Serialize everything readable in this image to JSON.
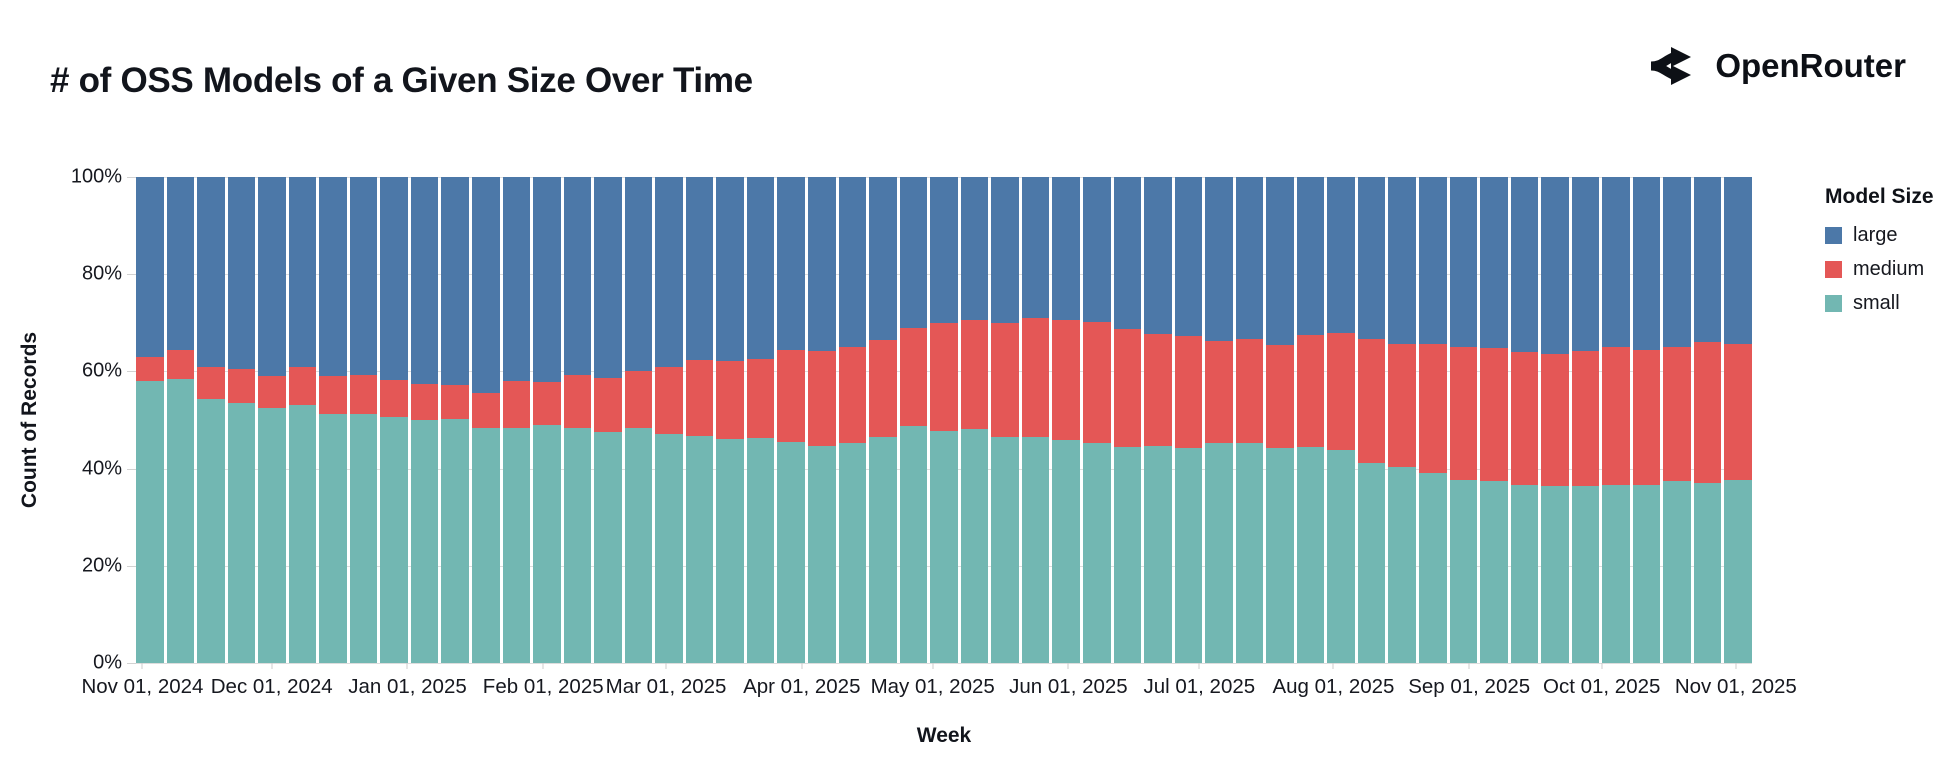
{
  "header": {
    "title": "# of OSS Models of a Given Size Over Time",
    "brand": "OpenRouter"
  },
  "colors": {
    "large": "#4c78a8",
    "medium": "#e45756",
    "small": "#72b7b2",
    "text": "#16181f",
    "gridline": "#dddddd"
  },
  "chart_data": {
    "type": "bar",
    "variant": "stacked-normalized-weekly",
    "title": "# of OSS Models of a Given Size Over Time",
    "xlabel": "Week",
    "ylabel": "Count of Records",
    "ylim": [
      0,
      100
    ],
    "grid": true,
    "y_ticks": [
      {
        "label": "0%",
        "value": 0
      },
      {
        "label": "20%",
        "value": 20
      },
      {
        "label": "40%",
        "value": 40
      },
      {
        "label": "60%",
        "value": 60
      },
      {
        "label": "80%",
        "value": 80
      },
      {
        "label": "100%",
        "value": 100
      }
    ],
    "x_ticks": [
      {
        "label": "Nov 01, 2024",
        "frac": 0.4
      },
      {
        "label": "Dec 01, 2024",
        "frac": 8.4
      },
      {
        "label": "Jan 01, 2025",
        "frac": 16.8
      },
      {
        "label": "Feb 01, 2025",
        "frac": 25.2
      },
      {
        "label": "Mar 01, 2025",
        "frac": 32.8
      },
      {
        "label": "Apr 01, 2025",
        "frac": 41.2
      },
      {
        "label": "May 01, 2025",
        "frac": 49.3
      },
      {
        "label": "Jun 01, 2025",
        "frac": 57.7
      },
      {
        "label": "Jul 01, 2025",
        "frac": 65.8
      },
      {
        "label": "Aug 01, 2025",
        "frac": 74.1
      },
      {
        "label": "Sep 01, 2025",
        "frac": 82.5
      },
      {
        "label": "Oct 01, 2025",
        "frac": 90.7
      },
      {
        "label": "Nov 01, 2025",
        "frac": 99.0
      }
    ],
    "legend": {
      "title": "Model Size",
      "position": "right",
      "entries": [
        {
          "label": "large",
          "color": "#4c78a8"
        },
        {
          "label": "medium",
          "color": "#e45756"
        },
        {
          "label": "small",
          "color": "#72b7b2"
        }
      ]
    },
    "weeks": [
      {
        "week": "2024-10-28",
        "small": 58.0,
        "medium": 5.0,
        "large": 37.0
      },
      {
        "week": "2024-11-04",
        "small": 58.5,
        "medium": 6.0,
        "large": 35.5
      },
      {
        "week": "2024-11-11",
        "small": 54.3,
        "medium": 6.7,
        "large": 39.0
      },
      {
        "week": "2024-11-18",
        "small": 53.5,
        "medium": 7.0,
        "large": 39.5
      },
      {
        "week": "2024-11-25",
        "small": 52.4,
        "medium": 6.6,
        "large": 41.0
      },
      {
        "week": "2024-12-02",
        "small": 53.0,
        "medium": 8.0,
        "large": 39.0
      },
      {
        "week": "2024-12-09",
        "small": 51.3,
        "medium": 7.7,
        "large": 41.0
      },
      {
        "week": "2024-12-16",
        "small": 51.3,
        "medium": 8.0,
        "large": 40.7
      },
      {
        "week": "2024-12-23",
        "small": 50.7,
        "medium": 7.5,
        "large": 41.8
      },
      {
        "week": "2024-12-30",
        "small": 50.0,
        "medium": 7.4,
        "large": 42.6
      },
      {
        "week": "2025-01-06",
        "small": 50.2,
        "medium": 7.1,
        "large": 42.7
      },
      {
        "week": "2025-01-13",
        "small": 48.4,
        "medium": 7.2,
        "large": 44.4
      },
      {
        "week": "2025-01-20",
        "small": 48.4,
        "medium": 9.7,
        "large": 41.9
      },
      {
        "week": "2025-01-27",
        "small": 48.9,
        "medium": 8.9,
        "large": 42.2
      },
      {
        "week": "2025-02-03",
        "small": 48.3,
        "medium": 10.9,
        "large": 40.8
      },
      {
        "week": "2025-02-10",
        "small": 47.5,
        "medium": 11.2,
        "large": 41.3
      },
      {
        "week": "2025-02-17",
        "small": 48.3,
        "medium": 11.7,
        "large": 40.0
      },
      {
        "week": "2025-02-24",
        "small": 47.1,
        "medium": 13.8,
        "large": 39.1
      },
      {
        "week": "2025-03-03",
        "small": 46.7,
        "medium": 15.6,
        "large": 37.7
      },
      {
        "week": "2025-03-10",
        "small": 46.1,
        "medium": 16.0,
        "large": 37.9
      },
      {
        "week": "2025-03-17",
        "small": 46.2,
        "medium": 16.4,
        "large": 37.4
      },
      {
        "week": "2025-03-24",
        "small": 45.5,
        "medium": 18.9,
        "large": 35.6
      },
      {
        "week": "2025-03-31",
        "small": 44.7,
        "medium": 19.6,
        "large": 35.7
      },
      {
        "week": "2025-04-07",
        "small": 45.2,
        "medium": 19.9,
        "large": 34.9
      },
      {
        "week": "2025-04-14",
        "small": 46.4,
        "medium": 20.0,
        "large": 33.6
      },
      {
        "week": "2025-04-21",
        "small": 48.7,
        "medium": 20.2,
        "large": 31.1
      },
      {
        "week": "2025-04-28",
        "small": 47.8,
        "medium": 22.2,
        "large": 30.0
      },
      {
        "week": "2025-05-05",
        "small": 48.2,
        "medium": 22.4,
        "large": 29.4
      },
      {
        "week": "2025-05-12",
        "small": 46.6,
        "medium": 23.4,
        "large": 30.0
      },
      {
        "week": "2025-05-19",
        "small": 46.4,
        "medium": 24.5,
        "large": 29.1
      },
      {
        "week": "2025-05-26",
        "small": 45.9,
        "medium": 24.7,
        "large": 29.4
      },
      {
        "week": "2025-06-02",
        "small": 45.2,
        "medium": 25.0,
        "large": 29.8
      },
      {
        "week": "2025-06-09",
        "small": 44.4,
        "medium": 24.3,
        "large": 31.3
      },
      {
        "week": "2025-06-16",
        "small": 44.7,
        "medium": 22.9,
        "large": 32.4
      },
      {
        "week": "2025-06-23",
        "small": 44.2,
        "medium": 23.1,
        "large": 32.7
      },
      {
        "week": "2025-06-30",
        "small": 45.3,
        "medium": 20.9,
        "large": 33.8
      },
      {
        "week": "2025-07-07",
        "small": 45.3,
        "medium": 21.3,
        "large": 33.4
      },
      {
        "week": "2025-07-14",
        "small": 44.3,
        "medium": 21.1,
        "large": 34.6
      },
      {
        "week": "2025-07-21",
        "small": 44.5,
        "medium": 22.9,
        "large": 32.6
      },
      {
        "week": "2025-07-28",
        "small": 43.9,
        "medium": 23.9,
        "large": 32.2
      },
      {
        "week": "2025-08-04",
        "small": 41.2,
        "medium": 25.4,
        "large": 33.4
      },
      {
        "week": "2025-08-11",
        "small": 40.4,
        "medium": 25.3,
        "large": 34.3
      },
      {
        "week": "2025-08-18",
        "small": 39.1,
        "medium": 26.6,
        "large": 34.3
      },
      {
        "week": "2025-08-25",
        "small": 37.7,
        "medium": 27.3,
        "large": 35.0
      },
      {
        "week": "2025-09-01",
        "small": 37.5,
        "medium": 27.4,
        "large": 35.1
      },
      {
        "week": "2025-09-08",
        "small": 36.6,
        "medium": 27.4,
        "large": 36.0
      },
      {
        "week": "2025-09-15",
        "small": 36.4,
        "medium": 27.2,
        "large": 36.4
      },
      {
        "week": "2025-09-22",
        "small": 36.4,
        "medium": 27.8,
        "large": 35.8
      },
      {
        "week": "2025-09-29",
        "small": 36.7,
        "medium": 28.3,
        "large": 35.0
      },
      {
        "week": "2025-10-06",
        "small": 36.6,
        "medium": 27.8,
        "large": 35.6
      },
      {
        "week": "2025-10-13",
        "small": 37.5,
        "medium": 27.6,
        "large": 34.9
      },
      {
        "week": "2025-10-20",
        "small": 37.1,
        "medium": 28.9,
        "large": 34.0
      },
      {
        "week": "2025-10-27",
        "small": 37.7,
        "medium": 28.0,
        "large": 34.3
      }
    ]
  }
}
